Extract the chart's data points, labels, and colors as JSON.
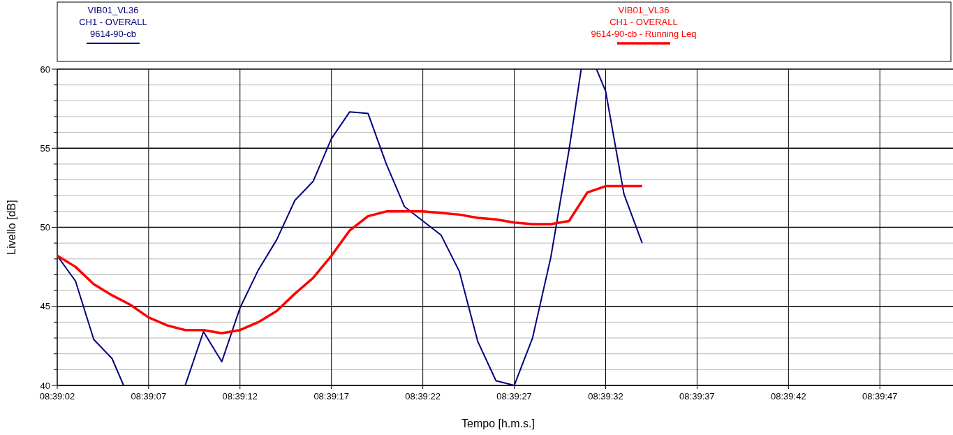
{
  "chart_data": {
    "type": "line",
    "xlabel": "Tempo [h.m.s.]",
    "ylabel": "Livello [dB]",
    "legend": "top",
    "grid": true,
    "line_style": "solid",
    "marker": "none",
    "xlim": [
      8.650556,
      8.664167
    ],
    "xticks": [
      {
        "value": 8.650556,
        "label": "08:39:02"
      },
      {
        "value": 8.651944,
        "label": "08:39:07"
      },
      {
        "value": 8.653333,
        "label": "08:39:12"
      },
      {
        "value": 8.654722,
        "label": "08:39:17"
      },
      {
        "value": 8.656111,
        "label": "08:39:22"
      },
      {
        "value": 8.6575,
        "label": "08:39:27"
      },
      {
        "value": 8.658889,
        "label": "08:39:32"
      },
      {
        "value": 8.660278,
        "label": "08:39:37"
      },
      {
        "value": 8.661667,
        "label": "08:39:42"
      },
      {
        "value": 8.663056,
        "label": "08:39:47"
      }
    ],
    "ylim": [
      40,
      60
    ],
    "yticks": [
      40,
      {
        "value": 41,
        "label": null
      },
      {
        "value": 42,
        "label": null
      },
      {
        "value": 43,
        "label": null
      },
      {
        "value": 44,
        "label": null
      },
      45,
      {
        "value": 46,
        "label": null
      },
      {
        "value": 47,
        "label": null
      },
      {
        "value": 48,
        "label": null
      },
      {
        "value": 49,
        "label": null
      },
      50,
      {
        "value": 51,
        "label": null
      },
      {
        "value": 52,
        "label": null
      },
      {
        "value": 53,
        "label": null
      },
      {
        "value": 54,
        "label": null
      },
      55,
      {
        "value": 56,
        "label": null
      },
      {
        "value": 57,
        "label": null
      },
      {
        "value": 58,
        "label": null
      },
      {
        "value": 59,
        "label": null
      },
      60
    ],
    "series": [
      {
        "name": "VIB01_VL36\nCH1 - OVERALL\n9614-90-cb",
        "color": "#000080",
        "x": [
          8.650556,
          8.650833,
          8.651111,
          8.651389,
          8.651564,
          8.651944,
          8.6525,
          8.652778,
          8.653056,
          8.653333,
          8.653611,
          8.653889,
          8.654167,
          8.654444,
          8.654722,
          8.655,
          8.655278,
          8.655556,
          8.655833,
          8.656111,
          8.656389,
          8.656667,
          8.656944,
          8.657222,
          8.6575,
          8.657778,
          8.658056,
          8.658333,
          8.658517,
          8.658611,
          8.65875,
          8.658889,
          8.659167,
          8.659444
        ],
        "values": [
          48.2,
          46.6,
          42.9,
          41.7,
          40,
          null,
          40,
          43.4,
          41.5,
          44.9,
          47.3,
          49.2,
          51.7,
          52.9,
          55.6,
          57.3,
          57.2,
          54.0,
          51.3,
          50.4,
          49.5,
          47.2,
          42.8,
          40.3,
          40.0,
          43.0,
          48.1,
          54.9,
          60,
          null,
          60,
          58.6,
          52.1,
          49.0
        ]
      },
      {
        "name": "VIB01_VL36\nCH1 - OVERALL\n9614-90-cb - Running Leq",
        "color": "#ff0000",
        "x": [
          8.650556,
          8.650833,
          8.651111,
          8.651389,
          8.651667,
          8.651944,
          8.652222,
          8.6525,
          8.652778,
          8.653056,
          8.653333,
          8.653611,
          8.653889,
          8.654167,
          8.654444,
          8.654722,
          8.655,
          8.655278,
          8.655556,
          8.655833,
          8.656111,
          8.656389,
          8.656667,
          8.656944,
          8.657222,
          8.6575,
          8.657778,
          8.658056,
          8.658333,
          8.658611,
          8.658889,
          8.659167,
          8.659444
        ],
        "values": [
          48.2,
          47.5,
          46.4,
          45.7,
          45.1,
          44.3,
          43.8,
          43.5,
          43.5,
          43.3,
          43.5,
          44.0,
          44.7,
          45.8,
          46.8,
          48.2,
          49.8,
          50.7,
          51.0,
          51.0,
          51.0,
          50.9,
          50.8,
          50.6,
          50.5,
          50.3,
          50.2,
          50.2,
          50.4,
          52.2,
          52.6,
          52.6,
          52.6
        ]
      }
    ]
  }
}
